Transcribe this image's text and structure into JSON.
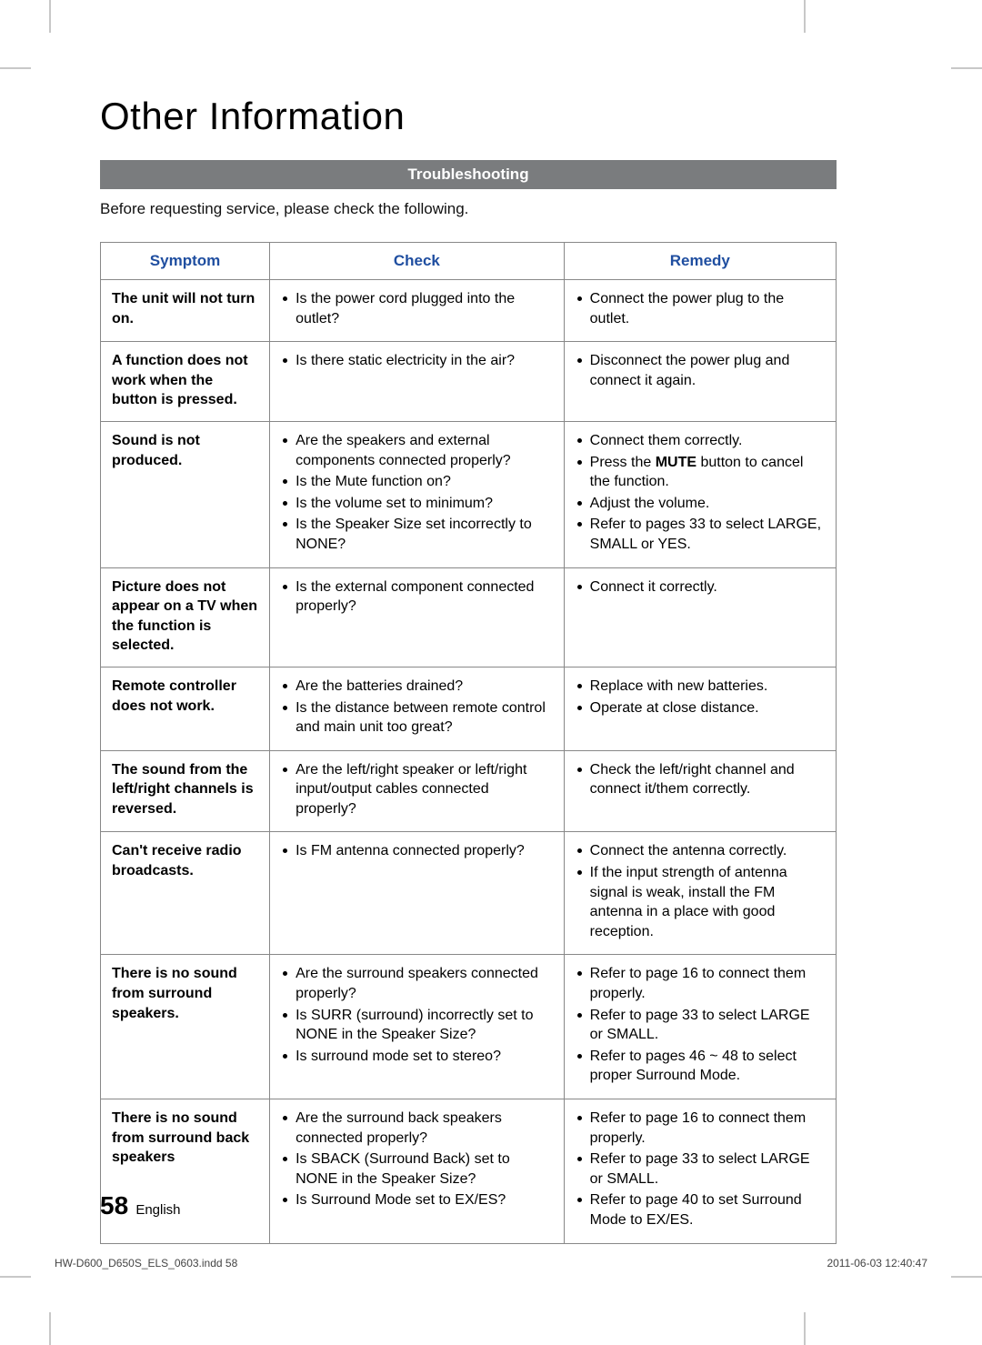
{
  "page_title": "Other Information",
  "section_bar": "Troubleshooting",
  "intro": "Before requesting service, please check the following.",
  "columns": {
    "symptom": "Symptom",
    "check": "Check",
    "remedy": "Remedy"
  },
  "colors": {
    "header_text": "#1f4ea0",
    "section_bar_bg": "#7a7c7e",
    "section_bar_text": "#ffffff",
    "border": "#888888"
  },
  "rows": [
    {
      "symptom": "The unit will not turn on.",
      "check": [
        "Is the power cord plugged into the outlet?"
      ],
      "remedy": [
        "Connect the power plug to the outlet."
      ]
    },
    {
      "symptom": "A function does not work when the button is pressed.",
      "check": [
        "Is there static electricity in the air?"
      ],
      "remedy": [
        "Disconnect the power plug and connect it again."
      ]
    },
    {
      "symptom": "Sound is not produced.",
      "check": [
        "Are the speakers and external components connected properly?",
        "Is the Mute function on?",
        "Is the volume set to minimum?",
        "Is the Speaker Size set incorrectly to NONE?"
      ],
      "remedy": [
        "Connect them correctly.",
        "Press the <b>MUTE</b> button to cancel the function.",
        "Adjust the volume.",
        "Refer to pages 33 to select LARGE, SMALL or YES."
      ]
    },
    {
      "symptom": "Picture does not appear on a TV when the function is selected.",
      "check": [
        "Is the external component connected properly?"
      ],
      "remedy": [
        "Connect it correctly."
      ]
    },
    {
      "symptom": "Remote controller does not work.",
      "check": [
        "Are the batteries drained?",
        "Is the distance between remote control and main unit too great?"
      ],
      "remedy": [
        "Replace with new batteries.",
        "Operate at close distance."
      ]
    },
    {
      "symptom": "The sound from the left/right channels is reversed.",
      "check": [
        "Are the left/right speaker or left/right input/output cables connected properly?"
      ],
      "remedy": [
        "Check the left/right channel and connect it/them correctly."
      ]
    },
    {
      "symptom": "Can't receive radio broadcasts.",
      "check": [
        "Is FM antenna connected properly?"
      ],
      "remedy": [
        "Connect the antenna correctly.",
        "If the input strength of antenna signal is weak, install the FM antenna in a place with good reception."
      ]
    },
    {
      "symptom": "There is no sound from surround speakers.",
      "check": [
        "Are the surround speakers connected properly?",
        "Is SURR (surround) incorrectly set to NONE in the Speaker Size?",
        "Is surround mode set to stereo?"
      ],
      "remedy": [
        "Refer to page 16 to connect them properly.",
        "Refer to page 33 to select LARGE or SMALL.",
        "Refer to pages 46 ~ 48 to select proper Surround Mode."
      ]
    },
    {
      "symptom": "There is no sound from surround back speakers",
      "check": [
        "Are the surround back speakers connected properly?",
        "Is SBACK (Surround Back) set to NONE in the Speaker Size?",
        "Is Surround Mode set to EX/ES?"
      ],
      "remedy": [
        "Refer to page 16 to connect them properly.",
        "Refer to page 33 to select LARGE or SMALL.",
        "Refer to page 40 to set Surround Mode to EX/ES."
      ]
    }
  ],
  "footer": {
    "page_number": "58",
    "language": "English"
  },
  "print": {
    "file": "HW-D600_D650S_ELS_0603.indd   58",
    "timestamp": "2011-06-03    12:40:47"
  }
}
